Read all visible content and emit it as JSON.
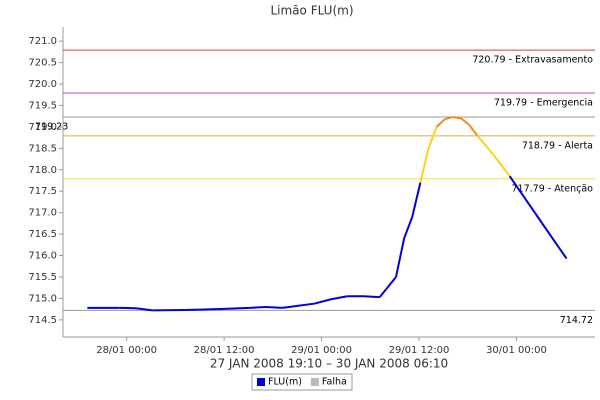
{
  "chart_data": {
    "type": "line",
    "title": "Limão FLU(m)",
    "subtitle": "27 JAN 2008 19:10 – 30 JAN 2008 06:10",
    "x": [
      "2008-01-27T19:10",
      "2008-01-27T23:10",
      "2008-01-28T01:10",
      "2008-01-28T03:10",
      "2008-01-28T07:10",
      "2008-01-28T11:10",
      "2008-01-28T15:10",
      "2008-01-28T17:10",
      "2008-01-28T19:10",
      "2008-01-28T23:10",
      "2008-01-29T01:10",
      "2008-01-29T03:10",
      "2008-01-29T05:10",
      "2008-01-29T07:10",
      "2008-01-29T09:10",
      "2008-01-29T10:10",
      "2008-01-29T11:10",
      "2008-01-29T12:10",
      "2008-01-29T13:10",
      "2008-01-29T14:10",
      "2008-01-29T15:10",
      "2008-01-29T16:10",
      "2008-01-29T17:10",
      "2008-01-29T18:10",
      "2008-01-29T19:10",
      "2008-01-29T21:10",
      "2008-01-29T23:10",
      "2008-01-30T01:10",
      "2008-01-30T03:10",
      "2008-01-30T05:10",
      "2008-01-30T06:10"
    ],
    "series": [
      {
        "name": "FLU(m)",
        "color": "#0000dd",
        "values": [
          714.78,
          714.78,
          714.77,
          714.72,
          714.73,
          714.75,
          714.78,
          714.8,
          714.78,
          714.88,
          714.98,
          715.05,
          715.05,
          715.03,
          715.5,
          716.4,
          716.9,
          717.7,
          718.5,
          719.0,
          719.18,
          719.23,
          719.2,
          719.05,
          718.8,
          718.35,
          717.85,
          717.3,
          716.75,
          716.2,
          715.93
        ]
      },
      {
        "name": "Falha",
        "color": "#bbbbbb",
        "values": [
          null,
          null,
          null,
          null,
          null,
          null,
          null,
          null,
          null,
          null,
          null,
          null,
          null,
          null,
          null,
          null,
          null,
          null,
          null,
          null,
          null,
          null,
          null,
          null,
          null,
          null,
          null,
          null,
          null,
          null,
          null
        ]
      }
    ],
    "thresholds": [
      {
        "value": 720.79,
        "label": "720.79 - Extravasamento",
        "color": "#d04040"
      },
      {
        "value": 719.79,
        "label": "719.79 - Emergencia",
        "color": "#cc44cc"
      },
      {
        "value": 719.23,
        "label": "719.23",
        "color": "#999999",
        "label_side": "left"
      },
      {
        "value": 718.79,
        "label": "718.79 - Alerta",
        "color": "#d4b040",
        "segment_color": "#f08a1c"
      },
      {
        "value": 717.79,
        "label": "717.79 - Atenção",
        "color": "#f0e040",
        "segment_color": "#ffd21a"
      },
      {
        "value": 714.72,
        "label": "714.72",
        "color": "#999999"
      }
    ],
    "ylim": [
      714.1,
      721.33
    ],
    "yticks": [
      {
        "value": 714.5,
        "label": "714.5"
      },
      {
        "value": 715,
        "label": "715.0"
      },
      {
        "value": 715.5,
        "label": "715.5"
      },
      {
        "value": 716,
        "label": "716.0"
      },
      {
        "value": 716.5,
        "label": "716.5"
      },
      {
        "value": 717,
        "label": "717.0"
      },
      {
        "value": 717.5,
        "label": "717.5"
      },
      {
        "value": 718,
        "label": "718.0"
      },
      {
        "value": 718.5,
        "label": "718.5"
      },
      {
        "value": 719,
        "label": "719.0"
      },
      {
        "value": 719.5,
        "label": "719.5"
      },
      {
        "value": 720,
        "label": "720.0"
      },
      {
        "value": 720.5,
        "label": "720.5"
      },
      {
        "value": 721,
        "label": "721.0"
      }
    ],
    "xlim": [
      "2008-01-27T16:10",
      "2008-01-30T09:40"
    ],
    "xticks": [
      {
        "value": "2008-01-28T00:00",
        "label": "28/01 00:00"
      },
      {
        "value": "2008-01-28T12:00",
        "label": "28/01 12:00"
      },
      {
        "value": "2008-01-29T00:00",
        "label": "29/01 00:00"
      },
      {
        "value": "2008-01-29T12:00",
        "label": "29/01 12:00"
      },
      {
        "value": "2008-01-30T00:00",
        "label": "30/01 00:00"
      }
    ],
    "grid": false
  }
}
